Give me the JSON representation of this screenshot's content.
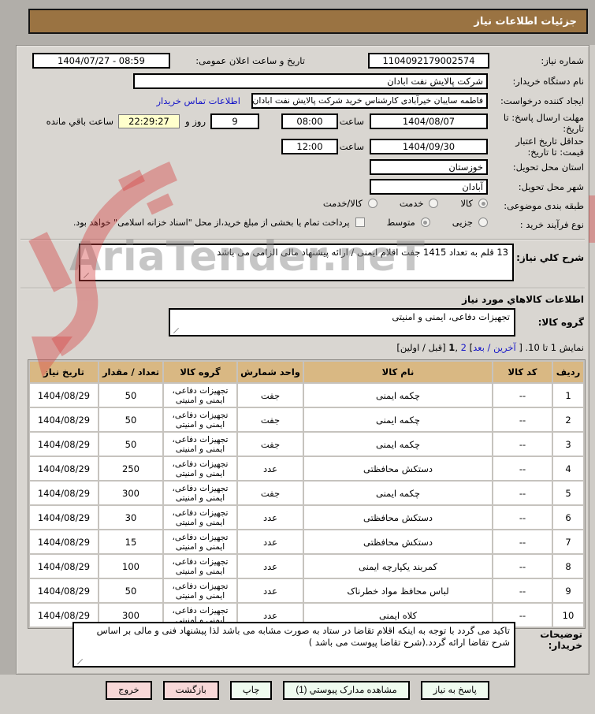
{
  "title": "جزئیات اطلاعات نیاز",
  "watermark": {
    "text": "AriaTender.neT"
  },
  "form": {
    "need_number_label": "شماره نیاز:",
    "need_number": "1104092179002574",
    "announce_label": "تاریخ و ساعت اعلان عمومی:",
    "announce_value": "1404/07/27 - 08:59",
    "buyer_org_label": "نام دستگاه خریدار:",
    "buyer_org": "شرکت پالایش نفت ابادان",
    "creator_label": "ایجاد کننده درخواست:",
    "creator": "فاطمه سایبان خیرآبادی کارشناس خرید شرکت پالایش نفت ابادان",
    "contact_link": "اطلاعات تماس خریدار",
    "deadline_label": "مهلت ارسال پاسخ: تا تاریخ:",
    "deadline_date": "1404/08/07",
    "hour_label": "ساعت",
    "deadline_time": "08:00",
    "days_left": "9",
    "days_and_label": "روز و",
    "countdown": "22:29:27",
    "remaining_label": "ساعت باقي مانده",
    "validity_label": "حداقل تاریخ اعتبار قیمت: تا تاریخ:",
    "validity_date": "1404/09/30",
    "validity_time": "12:00",
    "province_label": "استان محل تحویل:",
    "province": "خوزستان",
    "city_label": "شهر محل تحویل:",
    "city": "آبادان",
    "classification_label": "طبقه بندی موضوعی:",
    "class_options": [
      "کالا",
      "خدمت",
      "کالا/خدمت"
    ],
    "class_selected_index": 0,
    "process_label": "نوع فرآیند خرید :",
    "process_options": [
      "جزیی",
      "متوسط"
    ],
    "process_selected_index": 1,
    "treasury_checkbox_label": "پرداخت تمام یا بخشی از مبلغ خرید،از محل \"اسناد خزانه اسلامی\" خواهد بود.",
    "treasury_checked": false,
    "description_label": "شرح کلي نیاز:",
    "description": "13 قلم به تعداد 1415 جفت اقلام ایمنی / ارائه پیشنهاد مالی الزامی می باشد",
    "goods_section_title": "اطلاعات کالاهاي مورد نیاز",
    "goods_group_label": "گروه کالا:",
    "goods_group": "تجهیزات دفاعی، ایمنی و امنیتی",
    "buyer_notes_label": "توضیحات خریدار:",
    "buyer_notes": "تاکید می گردد با توجه به اینکه اقلام تقاضا در ستاد به  صورت مشابه می باشد لذا پیشنهاد فنی و مالی بر اساس شرح تقاضا ارائه گردد.(شرح تقاضا پیوست می باشد )"
  },
  "pagination": {
    "prefix": "نمایش 1 تا 10. [ ",
    "next_link": "آخرین / بعد",
    "mid": "] ",
    "page2": "2",
    "comma": " ,",
    "page1": "1",
    "suffix": " [قبل / اولین]"
  },
  "table": {
    "headers": [
      "ردیف",
      "کد کالا",
      "نام کالا",
      "واحد شمارش",
      "گروه کالا",
      "تعداد / مقدار",
      "تاریخ نیاز"
    ],
    "rows": [
      [
        "1",
        "--",
        "چکمه ایمنی",
        "جفت",
        "تجهیزات دفاعی، ایمنی و امنیتی",
        "50",
        "1404/08/29"
      ],
      [
        "2",
        "--",
        "چکمه ایمنی",
        "جفت",
        "تجهیزات دفاعی، ایمنی و امنیتی",
        "50",
        "1404/08/29"
      ],
      [
        "3",
        "--",
        "چکمه ایمنی",
        "جفت",
        "تجهیزات دفاعی، ایمنی و امنیتی",
        "50",
        "1404/08/29"
      ],
      [
        "4",
        "--",
        "دستکش محافظتی",
        "عدد",
        "تجهیزات دفاعی، ایمنی و امنیتی",
        "250",
        "1404/08/29"
      ],
      [
        "5",
        "--",
        "چکمه ایمنی",
        "جفت",
        "تجهیزات دفاعی، ایمنی و امنیتی",
        "300",
        "1404/08/29"
      ],
      [
        "6",
        "--",
        "دستکش محافظتی",
        "عدد",
        "تجهیزات دفاعی، ایمنی و امنیتی",
        "30",
        "1404/08/29"
      ],
      [
        "7",
        "--",
        "دستکش محافظتی",
        "عدد",
        "تجهیزات دفاعی، ایمنی و امنیتی",
        "15",
        "1404/08/29"
      ],
      [
        "8",
        "--",
        "کمربند یکپارچه ایمنی",
        "عدد",
        "تجهیزات دفاعی، ایمنی و امنیتی",
        "100",
        "1404/08/29"
      ],
      [
        "9",
        "--",
        "لباس محافظ مواد خطرناک",
        "عدد",
        "تجهیزات دفاعی، ایمنی و امنیتی",
        "50",
        "1404/08/29"
      ],
      [
        "10",
        "--",
        "کلاه ایمنی",
        "عدد",
        "تجهیزات دفاعی، ایمنی و امنیتی",
        "300",
        "1404/08/29"
      ]
    ]
  },
  "buttons": [
    {
      "label": "پاسخ به نیاز",
      "type": "green"
    },
    {
      "label": "مشاهده مدارک پیوستي (1)",
      "type": "green"
    },
    {
      "label": "چاپ",
      "type": "green"
    },
    {
      "label": "بازگشت",
      "type": "pink"
    },
    {
      "label": "خروج",
      "type": "pink"
    }
  ],
  "colors": {
    "titlebar": "#9a7342",
    "table_header": "#d9b883",
    "countdown_bg": "#ffffcc",
    "button_green": "#effbef",
    "button_pink": "#f8d8d8",
    "link_blue": "#1515c8"
  }
}
